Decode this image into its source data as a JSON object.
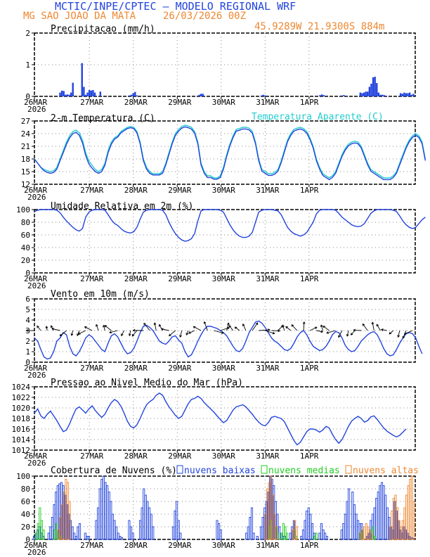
{
  "header": {
    "title": "MCTIC/INPE/CPTEC – MODELO REGIONAL WRF",
    "location": "MG SAO JOAO DA MATA",
    "run": "26/03/2026 00Z",
    "coords": "45.9289W 21.9300S 884m"
  },
  "colors": {
    "blue": "#2244dd",
    "cyan": "#22cccc",
    "green": "#22cc22",
    "orange": "#ee8833",
    "header_orange": "#ee8833",
    "header_blue": "#2244dd"
  },
  "x_ticks": [
    "26MAR",
    "27MAR",
    "28MAR",
    "29MAR",
    "30MAR",
    "31MAR",
    "1APR"
  ],
  "year_label": "2026",
  "chart_data": [
    {
      "type": "bar",
      "title": "Precipitacao (mm/h)",
      "ylim": [
        0,
        2
      ],
      "yticks": [
        "0",
        "1",
        "2"
      ],
      "x_hours": [
        14,
        15,
        16,
        17,
        18,
        19,
        20,
        21,
        26,
        27,
        28,
        29,
        30,
        31,
        32,
        33,
        36,
        52,
        53,
        54,
        55,
        56,
        90,
        91,
        92,
        124,
        125,
        126,
        156,
        157,
        158,
        168,
        169,
        178,
        179,
        180,
        181,
        182,
        183,
        184,
        185,
        186,
        187,
        188,
        189,
        190,
        191,
        192,
        200,
        201,
        202,
        203,
        204,
        205,
        206,
        207
      ],
      "values": [
        0.12,
        0.18,
        0.17,
        0.05,
        0.06,
        0.05,
        0.12,
        0.43,
        1.05,
        0.3,
        0.05,
        0.12,
        0.2,
        0.18,
        0.2,
        0.12,
        0.15,
        0.03,
        0.05,
        0.1,
        0.14,
        0.03,
        0.05,
        0.08,
        0.08,
        0.03,
        0.05,
        0.03,
        0.04,
        0.06,
        0.04,
        0.03,
        0.04,
        0.12,
        0.1,
        0.12,
        0.15,
        0.15,
        0.3,
        0.4,
        0.6,
        0.62,
        0.42,
        0.12,
        0.05,
        0.05,
        0.04,
        0.02,
        0.1,
        0.08,
        0.12,
        0.1,
        0.1,
        0.12,
        0.05,
        0.08
      ]
    },
    {
      "type": "line",
      "title": "2-m Temperatura (C)",
      "legend": "Temperatura Aparente (C)",
      "ylim": [
        12,
        27
      ],
      "yticks": [
        "12",
        "15",
        "18",
        "21",
        "24",
        "27"
      ],
      "series": [
        {
          "values": [
            18,
            17,
            16,
            15.5,
            15.2,
            15,
            15.2,
            16,
            18,
            20,
            22,
            23.5,
            24.5,
            24.8,
            24.2,
            22.5,
            19.5,
            17.5,
            16.5,
            15.5,
            15,
            15.5,
            17,
            20,
            22,
            23,
            23.5,
            24.5,
            25,
            25.5,
            25.7,
            25.5,
            24.5,
            22,
            18,
            16,
            15,
            14.5,
            14.5,
            14.5,
            15,
            17,
            19.5,
            22,
            24,
            25,
            25.7,
            26,
            25.8,
            25.5,
            24.5,
            22,
            17,
            15,
            14,
            14,
            13.5,
            13.5,
            14,
            16,
            19,
            21.5,
            23.5,
            25,
            25.2,
            25.5,
            25.5,
            25.3,
            24.5,
            22,
            18,
            15.5,
            15,
            14.5,
            14.5,
            14.8,
            15.5,
            17.5,
            20,
            22.5,
            24,
            25,
            25.3,
            25.5,
            25.2,
            24.5,
            23,
            21,
            18,
            16,
            14.5,
            14,
            13.5,
            14,
            15,
            17,
            19,
            20.5,
            21.5,
            22,
            22.2,
            22,
            21,
            19,
            17,
            15.5,
            15,
            14.5,
            14,
            13.5,
            13.5,
            13.5,
            14,
            15,
            17,
            19,
            21,
            22.5,
            23.5,
            24,
            23.5,
            22,
            18
          ]
        },
        {
          "values": [
            18,
            17,
            16,
            15.2,
            14.8,
            14.6,
            14.8,
            15.6,
            17.6,
            19.5,
            21.5,
            23,
            24,
            24.3,
            23.6,
            21.8,
            18.8,
            16.8,
            15.8,
            15,
            14.6,
            15,
            16.5,
            19.5,
            21.5,
            22.7,
            23.2,
            24.2,
            24.7,
            25.2,
            25.4,
            25.2,
            24.2,
            21.6,
            17.6,
            15.6,
            14.6,
            14.2,
            14.2,
            14.2,
            14.6,
            16.6,
            19.1,
            21.6,
            23.6,
            24.6,
            25.3,
            25.6,
            25.4,
            25.1,
            24.1,
            21.6,
            16.6,
            14.6,
            13.6,
            13.6,
            13.2,
            13.2,
            13.6,
            15.6,
            18.6,
            21.1,
            23.1,
            24.6,
            24.8,
            25.1,
            25.1,
            24.9,
            24.1,
            21.6,
            17.6,
            15.1,
            14.6,
            14.1,
            14.1,
            14.4,
            15.1,
            17.1,
            19.6,
            22.1,
            23.6,
            24.6,
            24.9,
            25.1,
            24.8,
            24.1,
            22.6,
            20.6,
            17.6,
            15.6,
            14.1,
            13.6,
            13.1,
            13.6,
            14.6,
            16.6,
            18.6,
            20.1,
            21.1,
            21.6,
            21.8,
            21.6,
            20.6,
            18.6,
            16.6,
            15.1,
            14.6,
            14.1,
            13.6,
            13.1,
            13.1,
            13.1,
            13.6,
            14.6,
            16.6,
            18.6,
            20.6,
            22.1,
            23.1,
            23.6,
            23.1,
            21.6,
            17.6
          ]
        }
      ]
    },
    {
      "type": "line",
      "title": "Umidade Relativa em 2m (%)",
      "ylim": [
        0,
        100
      ],
      "yticks": [
        "0",
        "20",
        "40",
        "60",
        "80",
        "100"
      ],
      "values": [
        97,
        99,
        100,
        100,
        100,
        100,
        100,
        99,
        95,
        88,
        82,
        77,
        72,
        68,
        66,
        70,
        88,
        96,
        99,
        100,
        100,
        100,
        99,
        92,
        84,
        78,
        75,
        70,
        66,
        64,
        63,
        65,
        72,
        85,
        96,
        99,
        100,
        100,
        100,
        100,
        99,
        92,
        80,
        70,
        62,
        56,
        52,
        50,
        51,
        54,
        62,
        82,
        98,
        100,
        100,
        100,
        100,
        100,
        99,
        96,
        86,
        76,
        68,
        62,
        58,
        56,
        56,
        58,
        64,
        80,
        96,
        99,
        100,
        100,
        100,
        99,
        98,
        92,
        82,
        72,
        66,
        62,
        60,
        58,
        60,
        64,
        72,
        80,
        93,
        99,
        100,
        100,
        100,
        100,
        99,
        94,
        88,
        84,
        80,
        76,
        74,
        73,
        74,
        78,
        86,
        94,
        98,
        100,
        100,
        100,
        100,
        100,
        99,
        97,
        90,
        82,
        76,
        72,
        70,
        72,
        78,
        84,
        88
      ]
    },
    {
      "type": "line",
      "title": "Vento em 10m (m/s)",
      "ylim": [
        0,
        6
      ],
      "yticks": [
        "0",
        "1",
        "2",
        "3",
        "4",
        "5",
        "6"
      ],
      "values": [
        2.3,
        2,
        1.2,
        0.5,
        0.3,
        0.4,
        1,
        2,
        2.3,
        2.8,
        2.6,
        1.5,
        0.8,
        0.6,
        1,
        1.6,
        2.3,
        2.6,
        2.4,
        2,
        1.6,
        1.2,
        1,
        1.8,
        2.5,
        2.7,
        2.4,
        1.8,
        1.2,
        0.8,
        0.9,
        1.3,
        2,
        2.8,
        3.4,
        3.5,
        3.3,
        3,
        2.5,
        2,
        1.8,
        1.7,
        2,
        2.4,
        2.5,
        2.1,
        1.8,
        1,
        0.5,
        0.7,
        1.3,
        2,
        2.6,
        3.1,
        3.4,
        3.4,
        3.3,
        3.2,
        3,
        2.8,
        2.5,
        2,
        1.5,
        1.1,
        1,
        1.3,
        2,
        2.8,
        3.3,
        3.8,
        3.9,
        3.7,
        3.3,
        2.8,
        2.3,
        2,
        1.8,
        1.5,
        1.2,
        1.1,
        1.3,
        1.8,
        2.4,
        2.8,
        3,
        2.6,
        2,
        1.5,
        1.3,
        1.1,
        1.2,
        1.5,
        2,
        2.6,
        2.9,
        2.8,
        2.3,
        1.6,
        1.2,
        1,
        1.1,
        1.5,
        2,
        2.3,
        2.6,
        2.8,
        2.9,
        2.6,
        2,
        1.3,
        0.8,
        0.6,
        0.7,
        1.2,
        1.8,
        2.3,
        2.7,
        2.8,
        2.7,
        2.3,
        1.5,
        0.8
      ]
    },
    {
      "type": "line",
      "title": "Pressao ao Nivel Medio do Mar (hPa)",
      "ylim": [
        1012,
        1024
      ],
      "yticks": [
        "1012",
        "1014",
        "1016",
        "1018",
        "1020",
        "1022",
        "1024"
      ],
      "values": [
        1019,
        1019.8,
        1018.5,
        1018,
        1018.8,
        1019.4,
        1018.5,
        1017.6,
        1016.5,
        1015.5,
        1015.8,
        1017,
        1018.5,
        1019.8,
        1020.2,
        1019.6,
        1019,
        1019.8,
        1020.4,
        1019.5,
        1018.8,
        1018.2,
        1018.8,
        1020,
        1021,
        1021.6,
        1021.2,
        1020.3,
        1019,
        1017.5,
        1016.5,
        1016.2,
        1016.8,
        1018,
        1019.4,
        1020.6,
        1021.2,
        1021.6,
        1022.4,
        1022.8,
        1022.4,
        1021.2,
        1020.2,
        1019.4,
        1018.6,
        1018,
        1018.4,
        1019.6,
        1020.8,
        1021.6,
        1021.8,
        1022.2,
        1021.8,
        1021,
        1020.4,
        1019.8,
        1019.2,
        1018.5,
        1017.8,
        1017.2,
        1017.6,
        1018.6,
        1019.6,
        1020.2,
        1020.4,
        1020.6,
        1020.2,
        1019.5,
        1018.8,
        1018,
        1017.3,
        1016.8,
        1016.6,
        1017.2,
        1018.2,
        1018.4,
        1018.2,
        1018,
        1017.4,
        1016.2,
        1015,
        1013.8,
        1013,
        1013.5,
        1014.5,
        1015.5,
        1016,
        1016,
        1015.8,
        1015.4,
        1015.8,
        1016.5,
        1016.2,
        1015,
        1014,
        1013.3,
        1014,
        1015.2,
        1016.5,
        1017.5,
        1018,
        1018.4,
        1018,
        1017.3,
        1017.6,
        1018.3,
        1018.5,
        1017.8,
        1017,
        1016.2,
        1015.6,
        1015.2,
        1014.8,
        1014.5,
        1014.8,
        1015.4,
        1016
      ]
    },
    {
      "type": "bar",
      "title": "Cobertura de Nuvens (%)",
      "legend": [
        "nuvens baixas",
        "nuvens medias",
        "nuvens altas"
      ],
      "ylim": [
        0,
        100
      ],
      "yticks": [
        "0",
        "20",
        "40",
        "60",
        "80",
        "100"
      ],
      "series": [
        {
          "name": "nuvens baixas",
          "x_hours": [
            0,
            1,
            2,
            3,
            4,
            5,
            8,
            9,
            10,
            11,
            12,
            13,
            14,
            15,
            16,
            17,
            18,
            19,
            20,
            21,
            22,
            23,
            24,
            25,
            28,
            29,
            30,
            34,
            35,
            36,
            37,
            38,
            39,
            40,
            41,
            42,
            43,
            44,
            45,
            46,
            47,
            48,
            52,
            53,
            54,
            58,
            59,
            60,
            61,
            62,
            63,
            64,
            65,
            76,
            77,
            78,
            79,
            80,
            100,
            101,
            102,
            116,
            117,
            118,
            119,
            120,
            122,
            124,
            125,
            126,
            127,
            128,
            129,
            130,
            131,
            132,
            133,
            134,
            135,
            136,
            137,
            140,
            141,
            142,
            146,
            147,
            148,
            149,
            150,
            151,
            152,
            153,
            156,
            157,
            158,
            159,
            160,
            168,
            169,
            170,
            171,
            172,
            174,
            175,
            176,
            177,
            178,
            179,
            182,
            183,
            184,
            185,
            186,
            187,
            188,
            189,
            190,
            191,
            192,
            193,
            194,
            195,
            196,
            197,
            198,
            199,
            200,
            201,
            202,
            203,
            204,
            205,
            206,
            207
          ],
          "values": [
            5,
            10,
            15,
            20,
            10,
            5,
            10,
            20,
            35,
            55,
            75,
            85,
            88,
            90,
            85,
            70,
            55,
            40,
            30,
            20,
            10,
            5,
            20,
            25,
            10,
            5,
            5,
            30,
            50,
            80,
            95,
            100,
            90,
            85,
            75,
            60,
            40,
            30,
            20,
            10,
            5,
            3,
            30,
            20,
            10,
            30,
            50,
            80,
            70,
            60,
            50,
            40,
            20,
            20,
            45,
            60,
            30,
            10,
            30,
            25,
            15,
            10,
            20,
            35,
            50,
            10,
            5,
            20,
            35,
            50,
            60,
            75,
            100,
            95,
            85,
            60,
            40,
            20,
            10,
            5,
            5,
            10,
            20,
            30,
            5,
            15,
            30,
            45,
            50,
            40,
            25,
            10,
            10,
            25,
            15,
            10,
            5,
            15,
            25,
            40,
            60,
            80,
            75,
            55,
            40,
            30,
            25,
            25,
            5,
            10,
            30,
            40,
            50,
            65,
            75,
            85,
            90,
            85,
            70,
            50,
            35,
            20,
            15,
            60,
            45,
            30,
            15,
            10,
            20,
            15,
            10,
            5,
            3,
            2
          ]
        },
        {
          "name": "nuvens medias",
          "x_hours": [
            1,
            2,
            3,
            4,
            5,
            11,
            12,
            13,
            14,
            128,
            129,
            132,
            133,
            135,
            136,
            137,
            138,
            142,
            143,
            153,
            154,
            178,
            179,
            184,
            185,
            186
          ],
          "values": [
            10,
            25,
            50,
            30,
            15,
            15,
            25,
            10,
            5,
            20,
            30,
            20,
            10,
            10,
            25,
            20,
            10,
            15,
            5,
            5,
            10,
            10,
            15,
            15,
            20,
            5
          ]
        },
        {
          "name": "nuvens altas",
          "x_hours": [
            13,
            14,
            15,
            16,
            17,
            18,
            19,
            126,
            127,
            128,
            129,
            130,
            131,
            132,
            141,
            142,
            143,
            178,
            179,
            180,
            181,
            182,
            183,
            184,
            194,
            195,
            196,
            197,
            198,
            199,
            200,
            201,
            202,
            203,
            204,
            205,
            206,
            207
          ],
          "values": [
            15,
            35,
            55,
            75,
            95,
            90,
            60,
            40,
            80,
            90,
            100,
            70,
            40,
            20,
            15,
            30,
            20,
            10,
            15,
            20,
            25,
            20,
            15,
            10,
            20,
            45,
            65,
            70,
            50,
            30,
            20,
            30,
            50,
            70,
            85,
            95,
            100,
            60
          ]
        }
      ]
    }
  ]
}
